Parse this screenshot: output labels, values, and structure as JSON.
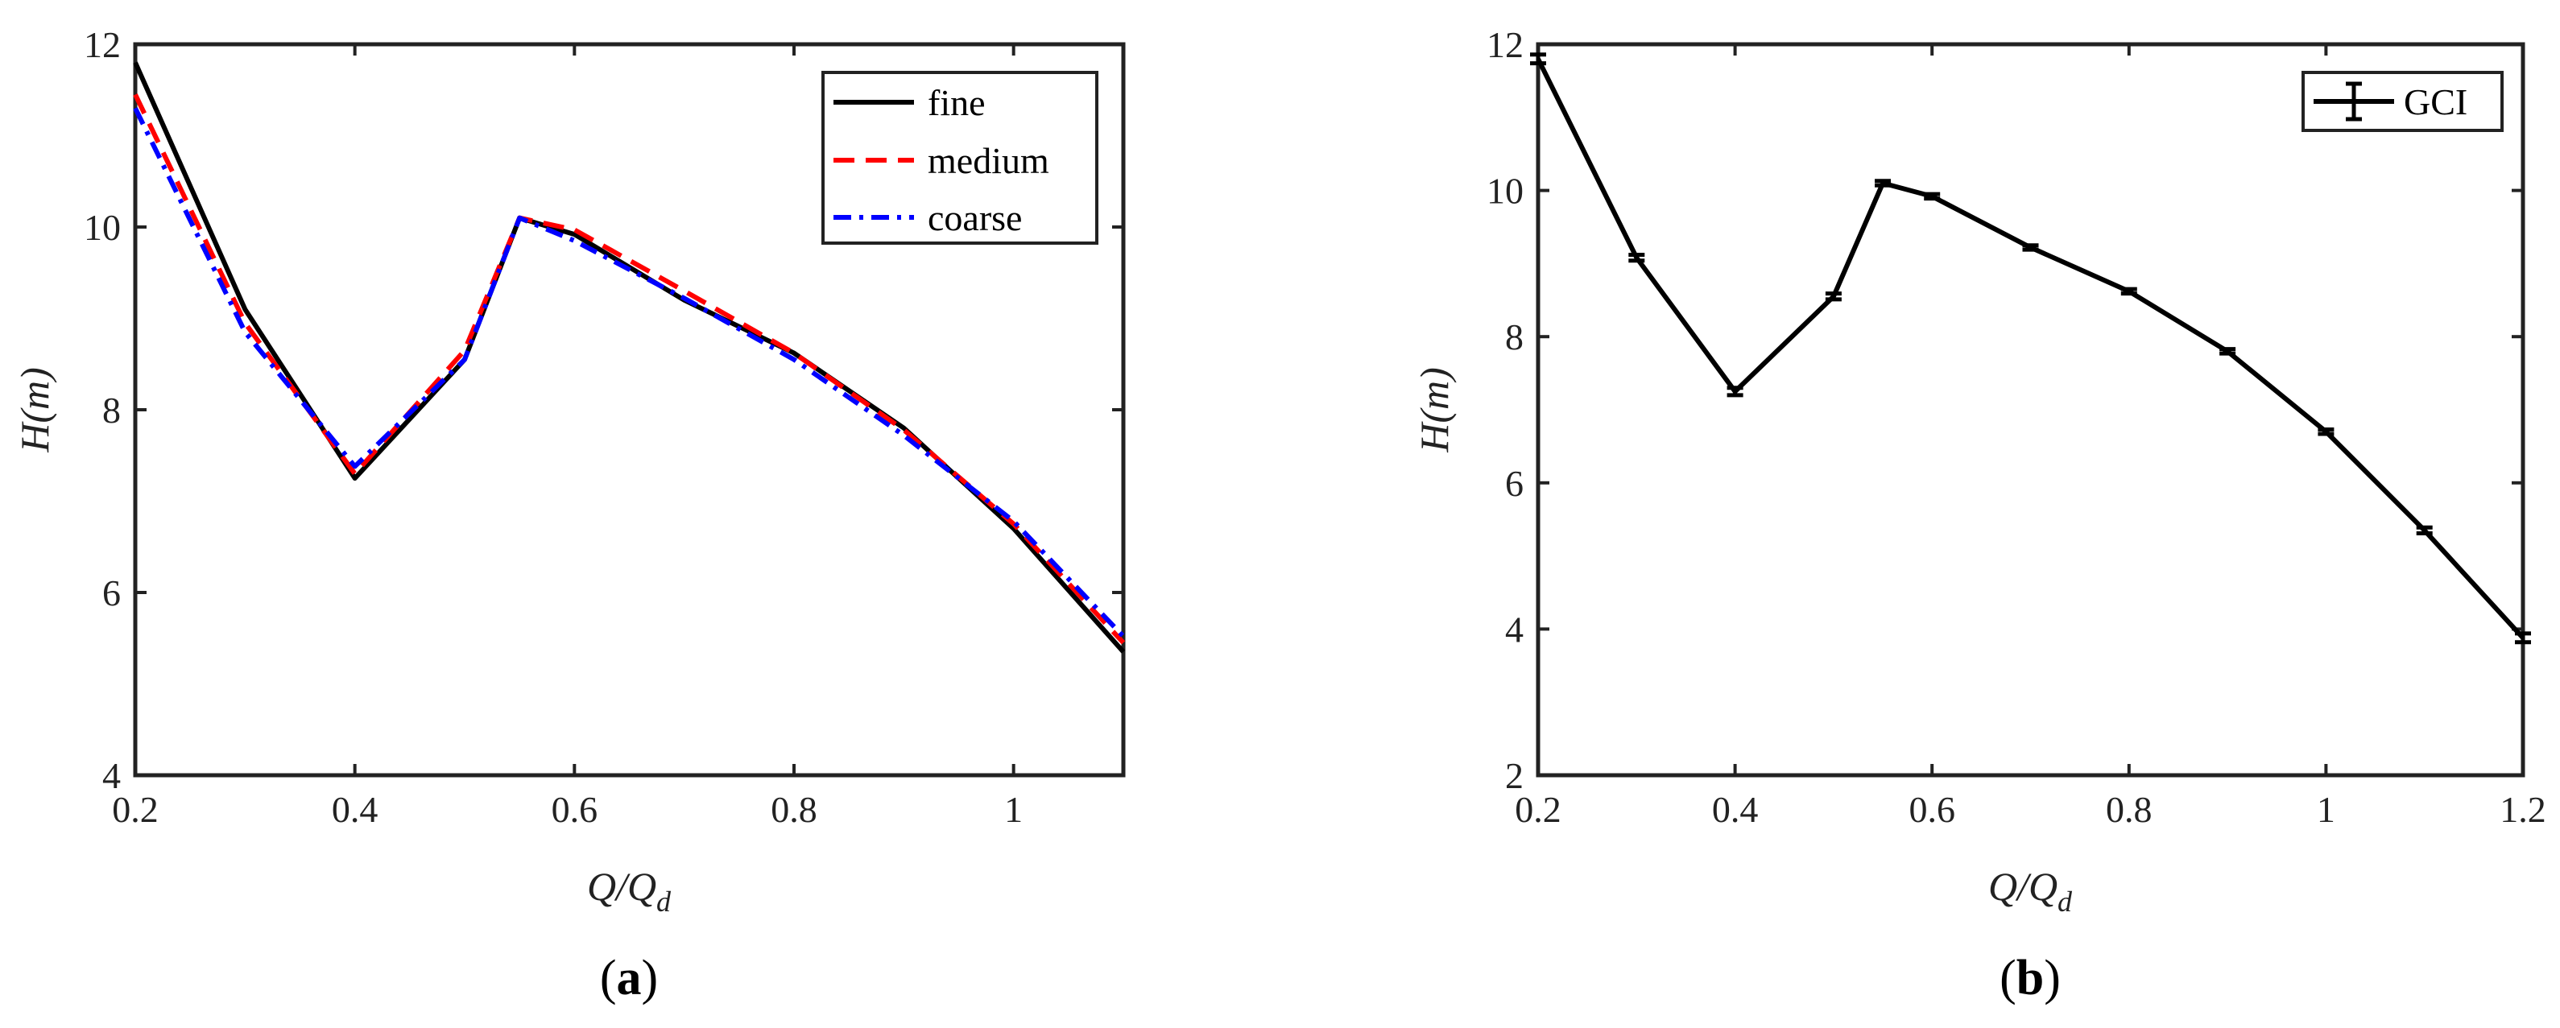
{
  "colors": {
    "fine": "#000000",
    "medium": "#ff0000",
    "coarse": "#0000ff",
    "gci": "#000000",
    "axis": "#222222"
  },
  "chart_data": [
    {
      "type": "line",
      "caption": {
        "open": "(",
        "letter": "a",
        "close": ")"
      },
      "xlabel": {
        "main": "Q/Q",
        "sub": "d"
      },
      "ylabel": "H(m)",
      "xlim": [
        0.2,
        1.1
      ],
      "ylim": [
        4,
        12
      ],
      "xticks": [
        0.2,
        0.4,
        0.6,
        0.8,
        1
      ],
      "xtick_labels": [
        "0.2",
        "0.4",
        "0.6",
        "0.8",
        "1"
      ],
      "yticks": [
        4,
        6,
        8,
        10,
        12
      ],
      "ytick_labels": [
        "4",
        "6",
        "8",
        "10",
        "12"
      ],
      "legend_position": "top-right",
      "series": [
        {
          "name": "fine",
          "style": "solid",
          "x": [
            0.2,
            0.3,
            0.4,
            0.5,
            0.55,
            0.6,
            0.7,
            0.8,
            0.9,
            1.0,
            1.1
          ],
          "y": [
            11.8,
            9.1,
            7.25,
            8.55,
            10.1,
            9.92,
            9.2,
            8.62,
            7.8,
            6.7,
            5.35
          ]
        },
        {
          "name": "medium",
          "style": "dashed",
          "x": [
            0.2,
            0.3,
            0.4,
            0.5,
            0.55,
            0.6,
            0.7,
            0.8,
            0.9,
            1.0,
            1.1
          ],
          "y": [
            11.45,
            8.95,
            7.3,
            8.65,
            10.1,
            9.97,
            9.3,
            8.62,
            7.78,
            6.75,
            5.45
          ]
        },
        {
          "name": "coarse",
          "style": "dashdot",
          "x": [
            0.2,
            0.3,
            0.4,
            0.5,
            0.55,
            0.6,
            0.7,
            0.8,
            0.9,
            1.0,
            1.1
          ],
          "y": [
            11.3,
            8.85,
            7.38,
            8.55,
            10.1,
            9.85,
            9.22,
            8.55,
            7.72,
            6.78,
            5.52
          ]
        }
      ]
    },
    {
      "type": "line",
      "caption": {
        "open": "(",
        "letter": "b",
        "close": ")"
      },
      "xlabel": {
        "main": "Q/Q",
        "sub": "d"
      },
      "ylabel": "H(m)",
      "xlim": [
        0.2,
        1.2
      ],
      "ylim": [
        2,
        12
      ],
      "xticks": [
        0.2,
        0.4,
        0.6,
        0.8,
        1,
        1.2
      ],
      "xtick_labels": [
        "0.2",
        "0.4",
        "0.6",
        "0.8",
        "1",
        "1.2"
      ],
      "yticks": [
        2,
        4,
        6,
        8,
        10,
        12
      ],
      "ytick_labels": [
        "2",
        "4",
        "6",
        "8",
        "10",
        "12"
      ],
      "legend_position": "top-right",
      "series": [
        {
          "name": "GCI",
          "style": "errorbar",
          "x": [
            0.2,
            0.3,
            0.4,
            0.5,
            0.55,
            0.6,
            0.7,
            0.8,
            0.9,
            1.0,
            1.1,
            1.2
          ],
          "y": [
            11.8,
            9.08,
            7.25,
            8.55,
            10.1,
            9.92,
            9.22,
            8.62,
            7.8,
            6.7,
            5.35,
            3.88
          ],
          "err": [
            0.06,
            0.04,
            0.05,
            0.04,
            0.03,
            0.03,
            0.03,
            0.03,
            0.03,
            0.03,
            0.04,
            0.06
          ]
        }
      ]
    }
  ]
}
